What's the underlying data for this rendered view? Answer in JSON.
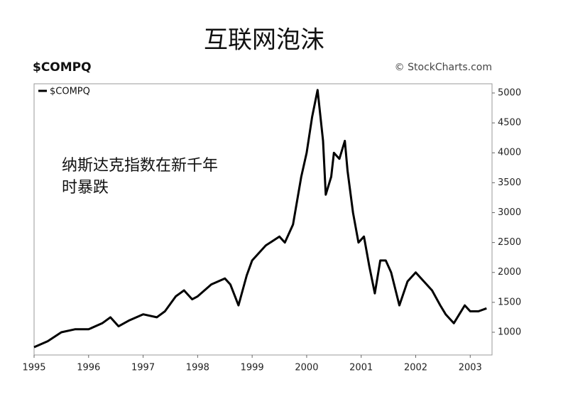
{
  "chart_data": {
    "type": "line",
    "title": "互联网泡沫",
    "symbol": "$COMPQ",
    "source": "© StockCharts.com",
    "annotation": [
      "纳斯达克指数在新千年",
      "时暴跌"
    ],
    "series": [
      {
        "name": "$COMPQ",
        "color": "#000000",
        "x": [
          1995.0,
          1995.25,
          1995.5,
          1995.75,
          1996.0,
          1996.25,
          1996.4,
          1996.55,
          1996.75,
          1997.0,
          1997.25,
          1997.4,
          1997.6,
          1997.75,
          1997.9,
          1998.0,
          1998.25,
          1998.5,
          1998.6,
          1998.75,
          1998.9,
          1999.0,
          1999.25,
          1999.5,
          1999.6,
          1999.75,
          1999.9,
          2000.0,
          2000.1,
          2000.2,
          2000.3,
          2000.35,
          2000.45,
          2000.5,
          2000.6,
          2000.7,
          2000.75,
          2000.85,
          2000.95,
          2001.05,
          2001.15,
          2001.25,
          2001.35,
          2001.45,
          2001.55,
          2001.7,
          2001.85,
          2002.0,
          2002.15,
          2002.3,
          2002.45,
          2002.55,
          2002.7,
          2002.8,
          2002.9,
          2003.0,
          2003.15,
          2003.3
        ],
        "values": [
          750,
          850,
          1000,
          1050,
          1050,
          1150,
          1250,
          1100,
          1200,
          1300,
          1250,
          1350,
          1600,
          1700,
          1550,
          1600,
          1800,
          1900,
          1800,
          1450,
          1950,
          2200,
          2450,
          2600,
          2500,
          2800,
          3600,
          4000,
          4600,
          5050,
          4200,
          3300,
          3600,
          4000,
          3900,
          4200,
          3700,
          3000,
          2500,
          2600,
          2100,
          1650,
          2200,
          2200,
          2000,
          1450,
          1850,
          2000,
          1850,
          1700,
          1450,
          1300,
          1150,
          1300,
          1450,
          1350,
          1350,
          1400
        ]
      }
    ],
    "xlim": [
      1995,
      2003.4
    ],
    "xticks": [
      1995,
      1996,
      1997,
      1998,
      1999,
      2000,
      2001,
      2002,
      2003
    ],
    "ylim": [
      620,
      5154
    ],
    "yticks": [
      1000,
      1500,
      2000,
      2500,
      3000,
      3500,
      4000,
      4500,
      5000
    ],
    "grid": false
  }
}
